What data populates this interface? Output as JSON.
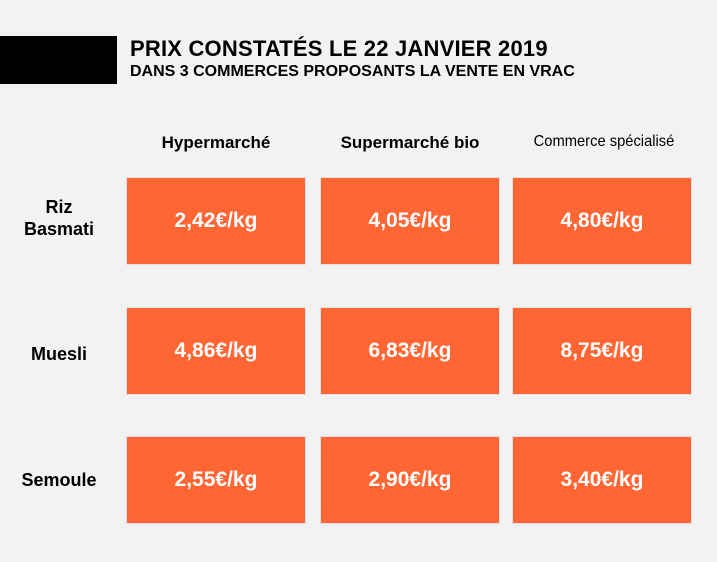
{
  "header": {
    "title": "PRIX CONSTATÉS LE 22 JANVIER 2019",
    "subtitle": "DANS 3 COMMERCES PROPOSANTS LA VENTE EN VRAC"
  },
  "columns": [
    "Hypermarché",
    "Supermarché bio",
    "Commerce spécialisé"
  ],
  "rows": [
    {
      "label_line1": "Riz",
      "label_line2": "Basmati",
      "prices": [
        "2,42€/kg",
        "4,05€/kg",
        "4,80€/kg"
      ]
    },
    {
      "label_line1": "Muesli",
      "label_line2": "",
      "prices": [
        "4,86€/kg",
        "6,83€/kg",
        "8,75€/kg"
      ]
    },
    {
      "label_line1": "Semoule",
      "label_line2": "",
      "prices": [
        "2,55€/kg",
        "2,90€/kg",
        "3,40€/kg"
      ]
    }
  ],
  "colors": {
    "cell_background": "#ff6633",
    "cell_text": "#ffffff",
    "page_background": "#f2f2f2"
  }
}
